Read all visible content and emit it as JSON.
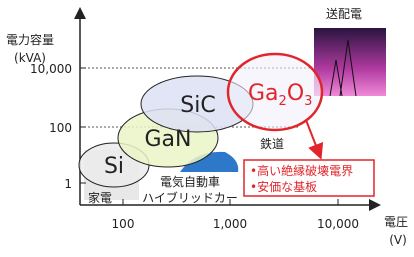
{
  "axes": {
    "y_title": [
      "電力容量",
      "(kVA)"
    ],
    "y_ticks": [
      "10,000",
      "100",
      "1"
    ],
    "x_title": [
      "電圧",
      "(V)"
    ],
    "x_ticks": [
      "100",
      "1,000",
      "10,000"
    ]
  },
  "regions": {
    "si": "Si",
    "gan": "GaN",
    "sic": "SiC",
    "ga2o3": [
      "Ga",
      "2",
      "O",
      "3"
    ]
  },
  "applications": {
    "home": "家電",
    "ev": [
      "電気自動車",
      "ハイブリッドカー"
    ],
    "rail": "鉄道",
    "grid": "送配電"
  },
  "callout": [
    "•高い絶縁破壊電界",
    "•安価な基板"
  ]
}
